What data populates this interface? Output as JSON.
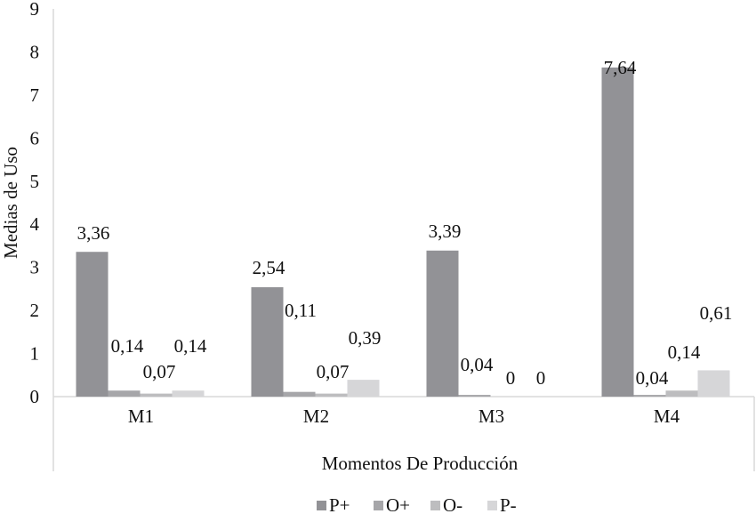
{
  "chart_data": {
    "type": "bar",
    "title": "",
    "xlabel": "Momentos De Producción",
    "ylabel": "Medias de Uso",
    "ylim": [
      0,
      9
    ],
    "yticks": [
      0,
      1,
      2,
      3,
      4,
      5,
      6,
      7,
      8,
      9
    ],
    "categories": [
      "M1",
      "M2",
      "M3",
      "M4"
    ],
    "series": [
      {
        "name": "P+",
        "color": "#929296",
        "values": [
          3.36,
          2.54,
          3.39,
          7.64
        ],
        "labels": [
          "3,36",
          "2,54",
          "3,39",
          "7,64"
        ]
      },
      {
        "name": "O+",
        "color": "#a6a6a9",
        "values": [
          0.14,
          0.11,
          0.04,
          0.04
        ],
        "labels": [
          "0,14",
          "0,11",
          "0,04",
          "0,04"
        ]
      },
      {
        "name": "O-",
        "color": "#bdbdbf",
        "values": [
          0.07,
          0.07,
          0,
          0.14
        ],
        "labels": [
          "0,07",
          "0,07",
          "0",
          "0,14"
        ]
      },
      {
        "name": "P-",
        "color": "#d6d6d8",
        "values": [
          0.14,
          0.39,
          0,
          0.61
        ],
        "labels": [
          "0,14",
          "0,39",
          "0",
          "0,61"
        ]
      }
    ],
    "grid": false,
    "legend_position": "bottom"
  }
}
